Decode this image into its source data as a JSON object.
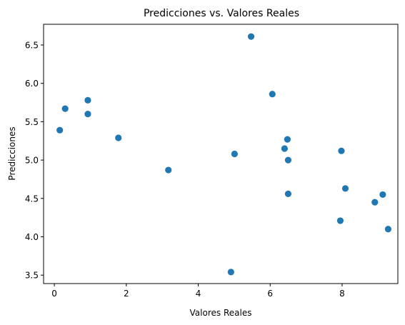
{
  "chart_data": {
    "type": "scatter",
    "title": "Predicciones vs. Valores Reales",
    "xlabel": "Valores Reales",
    "ylabel": "Predicciones",
    "xlim": [
      -0.3,
      9.55
    ],
    "ylim": [
      3.39,
      6.77
    ],
    "xticks": [
      0,
      2,
      4,
      6,
      8
    ],
    "xtick_labels": [
      "0",
      "2",
      "4",
      "6",
      "8"
    ],
    "yticks": [
      3.5,
      4.0,
      4.5,
      5.0,
      5.5,
      6.0,
      6.5
    ],
    "ytick_labels": [
      "3.5",
      "4.0",
      "4.5",
      "5.0",
      "5.5",
      "6.0",
      "6.5"
    ],
    "grid": false,
    "marker_color": "#1f77b4",
    "points": [
      {
        "x": 0.15,
        "y": 5.39
      },
      {
        "x": 0.3,
        "y": 5.67
      },
      {
        "x": 0.93,
        "y": 5.78
      },
      {
        "x": 0.93,
        "y": 5.6
      },
      {
        "x": 1.78,
        "y": 5.29
      },
      {
        "x": 3.17,
        "y": 4.87
      },
      {
        "x": 4.91,
        "y": 3.54
      },
      {
        "x": 5.01,
        "y": 5.08
      },
      {
        "x": 5.47,
        "y": 6.61
      },
      {
        "x": 6.06,
        "y": 5.86
      },
      {
        "x": 6.4,
        "y": 5.15
      },
      {
        "x": 6.48,
        "y": 5.27
      },
      {
        "x": 6.5,
        "y": 5.0
      },
      {
        "x": 6.5,
        "y": 4.56
      },
      {
        "x": 7.95,
        "y": 4.21
      },
      {
        "x": 7.98,
        "y": 5.12
      },
      {
        "x": 8.09,
        "y": 4.63
      },
      {
        "x": 8.91,
        "y": 4.45
      },
      {
        "x": 9.13,
        "y": 4.55
      },
      {
        "x": 9.28,
        "y": 4.1
      }
    ]
  }
}
